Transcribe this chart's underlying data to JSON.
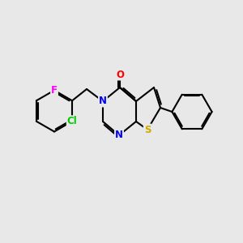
{
  "bg_color": "#e8e8e8",
  "bond_color": "#000000",
  "bond_width": 1.5,
  "atom_colors": {
    "N": "#0000ff",
    "O": "#ff0000",
    "S": "#ccaa00",
    "Cl": "#00cc00",
    "F": "#ff00ff",
    "C": "#000000"
  },
  "font_size": 8.5,
  "fig_size": [
    3.0,
    3.0
  ],
  "dpi": 100
}
